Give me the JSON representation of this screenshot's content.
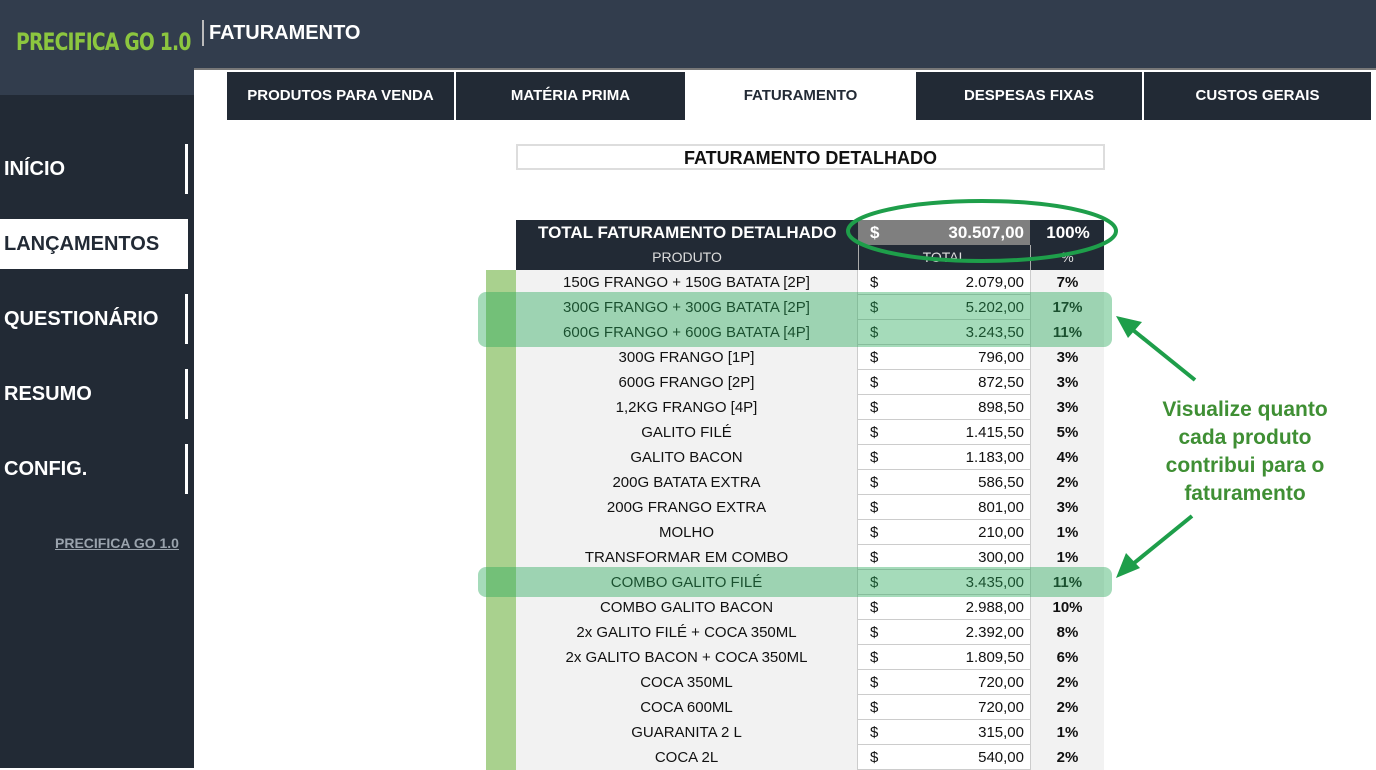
{
  "app": {
    "logo": "PRECIFICA GO 1.0",
    "page_title": "FATURAMENTO"
  },
  "sidebar": {
    "items": [
      {
        "label": "INÍCIO"
      },
      {
        "label": "LANÇAMENTOS",
        "active": true
      },
      {
        "label": "QUESTIONÁRIO"
      },
      {
        "label": "RESUMO"
      },
      {
        "label": "CONFIG."
      }
    ],
    "footer_link": "PRECIFICA GO 1.0"
  },
  "tabs": [
    {
      "label": "PRODUTOS PARA VENDA"
    },
    {
      "label": "MATÉRIA PRIMA"
    },
    {
      "label": "FATURAMENTO",
      "active": true
    },
    {
      "label": "DESPESAS FIXAS"
    },
    {
      "label": "CUSTOS GERAIS"
    }
  ],
  "report": {
    "title": "FATURAMENTO DETALHADO",
    "total_label": "TOTAL FATURAMENTO DETALHADO",
    "total_currency": "$",
    "total_value": "30.507,00",
    "total_pct": "100%",
    "headers": {
      "product": "PRODUTO",
      "total": "TOTAL",
      "pct": "%"
    },
    "rows": [
      {
        "product": "150G FRANGO + 150G BATATA [2P]",
        "currency": "$",
        "total": "2.079,00",
        "pct": "7%"
      },
      {
        "product": "300G FRANGO + 300G BATATA [2P]",
        "currency": "$",
        "total": "5.202,00",
        "pct": "17%",
        "highlighted": true
      },
      {
        "product": "600G FRANGO + 600G BATATA [4P]",
        "currency": "$",
        "total": "3.243,50",
        "pct": "11%",
        "highlighted": true
      },
      {
        "product": "300G FRANGO [1P]",
        "currency": "$",
        "total": "796,00",
        "pct": "3%"
      },
      {
        "product": "600G FRANGO [2P]",
        "currency": "$",
        "total": "872,50",
        "pct": "3%"
      },
      {
        "product": "1,2KG FRANGO [4P]",
        "currency": "$",
        "total": "898,50",
        "pct": "3%"
      },
      {
        "product": "GALITO FILÉ",
        "currency": "$",
        "total": "1.415,50",
        "pct": "5%"
      },
      {
        "product": "GALITO BACON",
        "currency": "$",
        "total": "1.183,00",
        "pct": "4%"
      },
      {
        "product": "200G BATATA EXTRA",
        "currency": "$",
        "total": "586,50",
        "pct": "2%"
      },
      {
        "product": "200G FRANGO EXTRA",
        "currency": "$",
        "total": "801,00",
        "pct": "3%"
      },
      {
        "product": "MOLHO",
        "currency": "$",
        "total": "210,00",
        "pct": "1%"
      },
      {
        "product": "TRANSFORMAR EM COMBO",
        "currency": "$",
        "total": "300,00",
        "pct": "1%"
      },
      {
        "product": "COMBO GALITO FILÉ",
        "currency": "$",
        "total": "3.435,00",
        "pct": "11%",
        "highlighted": true
      },
      {
        "product": "COMBO GALITO BACON",
        "currency": "$",
        "total": "2.988,00",
        "pct": "10%"
      },
      {
        "product": "2x GALITO FILÉ + COCA 350ML",
        "currency": "$",
        "total": "2.392,00",
        "pct": "8%"
      },
      {
        "product": "2x GALITO BACON + COCA 350ML",
        "currency": "$",
        "total": "1.809,50",
        "pct": "6%"
      },
      {
        "product": "COCA 350ML",
        "currency": "$",
        "total": "720,00",
        "pct": "2%"
      },
      {
        "product": "COCA 600ML",
        "currency": "$",
        "total": "720,00",
        "pct": "2%"
      },
      {
        "product": "GUARANITA 2 L",
        "currency": "$",
        "total": "315,00",
        "pct": "1%"
      },
      {
        "product": "COCA 2L",
        "currency": "$",
        "total": "540,00",
        "pct": "2%"
      }
    ]
  },
  "annotation": {
    "text": "Visualize quanto cada produto contribui para o faturamento",
    "color": "#1e9e4a"
  }
}
